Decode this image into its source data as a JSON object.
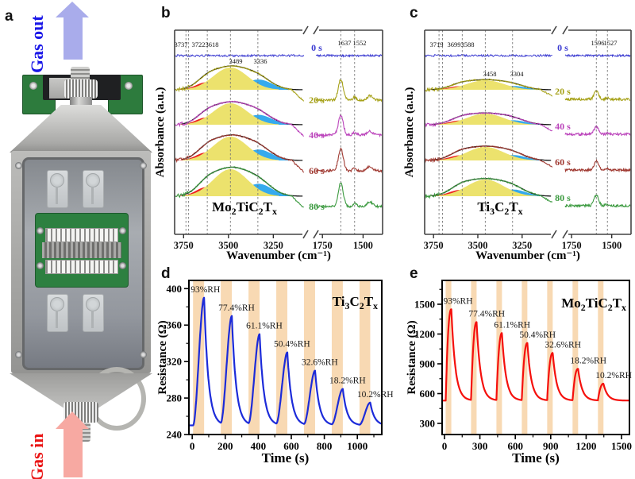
{
  "figure": {
    "panel_labels": {
      "a": "a",
      "b": "b",
      "c": "c",
      "d": "d",
      "e": "e"
    }
  },
  "panel_a": {
    "gas_out_label": "Gas out",
    "gas_out_color": "#1a17e8",
    "arrow_out_color": "#a9aceb",
    "gas_in_label": "Gas in",
    "gas_in_color": "#ea1515",
    "arrow_in_color": "#f7a9a2"
  },
  "chart_data": [
    {
      "id": "b",
      "type": "line",
      "kind": "ftir_spectra",
      "title": "Mo_2TiC_2T_x",
      "xlabel": "Wavenumber (cm⁻¹)",
      "ylabel": "Absorbance (a.u.)",
      "x_ticks_left": [
        3750,
        3500,
        3250
      ],
      "x_ticks_right": [
        1750,
        1500
      ],
      "x_domain_left": [
        3800,
        3070
      ],
      "x_domain_right": [
        1790,
        1380
      ],
      "dashed_left": [
        3737,
        3722,
        3618,
        3489,
        3336
      ],
      "dashed_right": [
        1637,
        1552
      ],
      "top_labels": [
        "3737",
        "3722",
        "3618"
      ],
      "peak_labels": [
        "3489",
        "3336"
      ],
      "right_peak_labels": [
        "1637",
        "1552"
      ],
      "components": [
        {
          "name": "red-band",
          "color": "#ee2222",
          "center": 3622,
          "sigma": 58,
          "rel": 0.34
        },
        {
          "name": "blue-band",
          "color": "#35aaee",
          "center": 3332,
          "sigma": 74,
          "rel": 0.46
        },
        {
          "name": "yellow-band",
          "color": "#ece26d",
          "center": 3489,
          "sigma": 96,
          "rel": 1.0
        }
      ],
      "right_peaks": [
        {
          "center": 1637,
          "sigma": 15,
          "rel": 1.0
        },
        {
          "center": 1552,
          "sigma": 11,
          "rel": 0.14
        },
        {
          "center": 1458,
          "sigma": 16,
          "rel": 0.2
        }
      ],
      "series": [
        {
          "label": "0 s",
          "color": "#3b3bd1",
          "amp": 0,
          "amp_right": 0
        },
        {
          "label": "20 s",
          "color": "#a6a118",
          "amp": 28,
          "amp_right": 26
        },
        {
          "label": "40 s",
          "color": "#bb44bb",
          "amp": 27,
          "amp_right": 25
        },
        {
          "label": "60 s",
          "color": "#a03a32",
          "amp": 30,
          "amp_right": 28
        },
        {
          "label": "80 s",
          "color": "#3c9a40",
          "amp": 34,
          "amp_right": 30
        }
      ]
    },
    {
      "id": "c",
      "type": "line",
      "kind": "ftir_spectra",
      "title": "Ti_3C_2T_x",
      "xlabel": "Wavenumber (cm⁻¹)",
      "ylabel": "Absorbance (a.u.)",
      "x_ticks_left": [
        3750,
        3500,
        3250
      ],
      "x_ticks_right": [
        1750,
        1500
      ],
      "x_domain_left": [
        3800,
        3070
      ],
      "x_domain_right": [
        1790,
        1380
      ],
      "dashed_left": [
        3719,
        3699,
        3588,
        3458,
        3304
      ],
      "dashed_right": [
        1596,
        1527
      ],
      "top_labels": [
        "3719",
        "3699",
        "3588"
      ],
      "peak_labels": [
        "3458",
        "3304"
      ],
      "right_peak_labels": [
        "1596",
        "1527"
      ],
      "components": [
        {
          "name": "red-band",
          "color": "#ee2222",
          "center": 3600,
          "sigma": 62,
          "rel": 0.38
        },
        {
          "name": "blue-band",
          "color": "#35aaee",
          "center": 3300,
          "sigma": 72,
          "rel": 0.4
        },
        {
          "name": "yellow-band",
          "color": "#ece26d",
          "center": 3458,
          "sigma": 104,
          "rel": 1.0
        }
      ],
      "right_peaks": [
        {
          "center": 1596,
          "sigma": 14,
          "rel": 1.0
        },
        {
          "center": 1527,
          "sigma": 10,
          "rel": 0.15
        }
      ],
      "series": [
        {
          "label": "0 s",
          "color": "#3b3bd1",
          "amp": 0,
          "amp_right": 0
        },
        {
          "label": "20 s",
          "color": "#a6a118",
          "amp": 12,
          "amp_right": 10
        },
        {
          "label": "40 s",
          "color": "#bb44bb",
          "amp": 14,
          "amp_right": 9
        },
        {
          "label": "60 s",
          "color": "#a03a32",
          "amp": 17,
          "amp_right": 11
        },
        {
          "label": "80 s",
          "color": "#3c9a40",
          "amp": 21,
          "amp_right": 13
        }
      ]
    },
    {
      "id": "d",
      "type": "line",
      "kind": "response",
      "title": "Ti_3C_2T_x",
      "xlabel": "Time (s)",
      "ylabel": "Resistance (Ω)",
      "xlim": [
        -20,
        1148
      ],
      "ylim": [
        240,
        409
      ],
      "xticks": [
        0,
        200,
        400,
        600,
        800,
        1000
      ],
      "yticks": [
        240,
        280,
        320,
        360,
        400
      ],
      "line_color": "#1c2bd9",
      "band_color": "#f8d9b3",
      "baseline": 250,
      "decay_tau": 26,
      "rise": "smooth",
      "pulses": [
        {
          "rh": "93%RH",
          "t0": 5,
          "t1": 72,
          "peak": 390
        },
        {
          "rh": "77.4%RH",
          "t0": 173,
          "t1": 240,
          "peak": 370
        },
        {
          "rh": "61.1%RH",
          "t0": 341,
          "t1": 408,
          "peak": 350
        },
        {
          "rh": "50.4%RH",
          "t0": 509,
          "t1": 576,
          "peak": 330
        },
        {
          "rh": "32.6%RH",
          "t0": 677,
          "t1": 744,
          "peak": 310
        },
        {
          "rh": "18.2%RH",
          "t0": 845,
          "t1": 912,
          "peak": 290
        },
        {
          "rh": "10.2%RH",
          "t0": 1013,
          "t1": 1078,
          "peak": 275
        }
      ]
    },
    {
      "id": "e",
      "type": "line",
      "kind": "response",
      "title": "Mo_2TiC_2T_x",
      "xlabel": "Time (s)",
      "ylabel": "Resistance (Ω)",
      "xlim": [
        -20,
        1567
      ],
      "ylim": [
        188,
        1740
      ],
      "xticks": [
        0,
        300,
        600,
        900,
        1200,
        1500
      ],
      "yticks": [
        300,
        600,
        900,
        1200,
        1500
      ],
      "line_color": "#f5100c",
      "band_color": "#f8d9b3",
      "baseline": 530,
      "decay_tau": 34,
      "rise": "spike",
      "pulses": [
        {
          "rh": "93%RH",
          "t0": 10,
          "t1": 58,
          "peak": 1450
        },
        {
          "rh": "77.4%RH",
          "t0": 225,
          "t1": 272,
          "peak": 1320
        },
        {
          "rh": "61.1%RH",
          "t0": 440,
          "t1": 487,
          "peak": 1210
        },
        {
          "rh": "50.4%RH",
          "t0": 655,
          "t1": 702,
          "peak": 1110
        },
        {
          "rh": "32.6%RH",
          "t0": 870,
          "t1": 917,
          "peak": 1010
        },
        {
          "rh": "18.2%RH",
          "t0": 1085,
          "t1": 1132,
          "peak": 850
        },
        {
          "rh": "10.2%RH",
          "t0": 1300,
          "t1": 1347,
          "peak": 700
        }
      ]
    }
  ]
}
